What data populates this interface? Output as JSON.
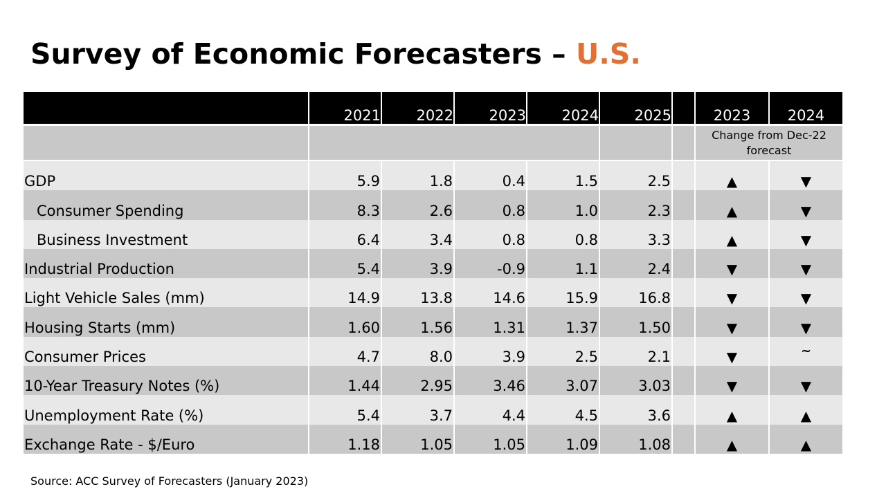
{
  "title": {
    "main": "Survey of Economic Forecasters – ",
    "accent": "U.S."
  },
  "table": {
    "year_headers": [
      "2021",
      "2022",
      "2023",
      "2024",
      "2025"
    ],
    "change_headers": [
      "2023",
      "2024"
    ],
    "change_note": "Change from Dec-22 forecast",
    "rows": [
      {
        "label": "GDP",
        "values": [
          "5.9",
          "1.8",
          "0.4",
          "1.5",
          "2.5"
        ],
        "changes": [
          "▲",
          "▼"
        ]
      },
      {
        "label": "Consumer Spending",
        "values": [
          "8.3",
          "2.6",
          "0.8",
          "1.0",
          "2.3"
        ],
        "changes": [
          "▲",
          "▼"
        ]
      },
      {
        "label": "Business Investment",
        "values": [
          "6.4",
          "3.4",
          "0.8",
          "0.8",
          "3.3"
        ],
        "changes": [
          "▲",
          "▼"
        ]
      },
      {
        "label": "Industrial Production",
        "values": [
          "5.4",
          "3.9",
          "-0.9",
          "1.1",
          "2.4"
        ],
        "changes": [
          "▼",
          "▼"
        ]
      },
      {
        "label": "Light Vehicle Sales (mm)",
        "values": [
          "14.9",
          "13.8",
          "14.6",
          "15.9",
          "16.8"
        ],
        "changes": [
          "▼",
          "▼"
        ]
      },
      {
        "label": "Housing Starts (mm)",
        "values": [
          "1.60",
          "1.56",
          "1.31",
          "1.37",
          "1.50"
        ],
        "changes": [
          "▼",
          "▼"
        ]
      },
      {
        "label": "Consumer Prices",
        "values": [
          "4.7",
          "8.0",
          "3.9",
          "2.5",
          "2.1"
        ],
        "changes": [
          "▼",
          "~"
        ]
      },
      {
        "label": "10-Year Treasury Notes (%)",
        "values": [
          "1.44",
          "2.95",
          "3.46",
          "3.07",
          "3.03"
        ],
        "changes": [
          "▼",
          "▼"
        ]
      },
      {
        "label": "Unemployment Rate (%)",
        "values": [
          "5.4",
          "3.7",
          "4.4",
          "4.5",
          "3.6"
        ],
        "changes": [
          "▲",
          "▲"
        ]
      },
      {
        "label": "Exchange Rate - $/Euro",
        "values": [
          "1.18",
          "1.05",
          "1.05",
          "1.09",
          "1.08"
        ],
        "changes": [
          "▲",
          "▲"
        ]
      }
    ]
  },
  "source": "Source: ACC Survey of Forecasters (January 2023)",
  "colors": {
    "accent": "#e07034",
    "header_bg": "#000000",
    "row_dark": "#c8c8c8",
    "row_light": "#e8e8e8"
  }
}
